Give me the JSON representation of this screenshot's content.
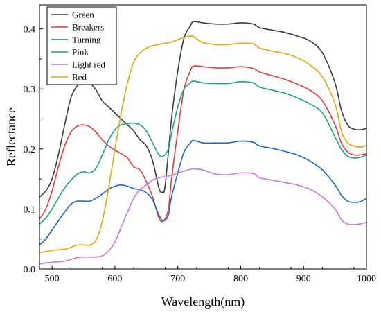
{
  "chart_data": {
    "type": "line",
    "xlabel": "Wavelength(nm)",
    "ylabel": "Reflectance",
    "xlim": [
      480,
      1000
    ],
    "ylim": [
      0.0,
      0.44
    ],
    "xticks": [
      500,
      600,
      700,
      800,
      900,
      1000
    ],
    "yticks": [
      0.0,
      0.1,
      0.2,
      0.3,
      0.4
    ],
    "grid": false,
    "legend_position": "top-left",
    "series": [
      {
        "name": "Green",
        "color": "#3a3a3a",
        "points": [
          [
            480,
            0.12
          ],
          [
            490,
            0.13
          ],
          [
            500,
            0.15
          ],
          [
            510,
            0.19
          ],
          [
            520,
            0.24
          ],
          [
            530,
            0.285
          ],
          [
            540,
            0.305
          ],
          [
            550,
            0.313
          ],
          [
            560,
            0.31
          ],
          [
            570,
            0.298
          ],
          [
            580,
            0.28
          ],
          [
            590,
            0.27
          ],
          [
            600,
            0.26
          ],
          [
            610,
            0.25
          ],
          [
            620,
            0.24
          ],
          [
            630,
            0.23
          ],
          [
            640,
            0.215
          ],
          [
            650,
            0.205
          ],
          [
            660,
            0.18
          ],
          [
            670,
            0.135
          ],
          [
            675,
            0.128
          ],
          [
            680,
            0.14
          ],
          [
            690,
            0.25
          ],
          [
            700,
            0.33
          ],
          [
            710,
            0.385
          ],
          [
            720,
            0.405
          ],
          [
            725,
            0.412
          ],
          [
            740,
            0.41
          ],
          [
            760,
            0.408
          ],
          [
            780,
            0.408
          ],
          [
            800,
            0.41
          ],
          [
            820,
            0.408
          ],
          [
            830,
            0.402
          ],
          [
            850,
            0.398
          ],
          [
            870,
            0.394
          ],
          [
            890,
            0.388
          ],
          [
            910,
            0.38
          ],
          [
            930,
            0.36
          ],
          [
            950,
            0.31
          ],
          [
            960,
            0.265
          ],
          [
            970,
            0.24
          ],
          [
            980,
            0.233
          ],
          [
            990,
            0.232
          ],
          [
            1000,
            0.234
          ]
        ]
      },
      {
        "name": "Breakers",
        "color": "#e8383b",
        "points": [
          [
            480,
            0.083
          ],
          [
            490,
            0.1
          ],
          [
            500,
            0.13
          ],
          [
            510,
            0.17
          ],
          [
            520,
            0.205
          ],
          [
            530,
            0.228
          ],
          [
            540,
            0.238
          ],
          [
            550,
            0.24
          ],
          [
            560,
            0.237
          ],
          [
            570,
            0.228
          ],
          [
            580,
            0.215
          ],
          [
            590,
            0.205
          ],
          [
            600,
            0.198
          ],
          [
            610,
            0.192
          ],
          [
            620,
            0.185
          ],
          [
            630,
            0.17
          ],
          [
            640,
            0.165
          ],
          [
            650,
            0.145
          ],
          [
            660,
            0.12
          ],
          [
            670,
            0.085
          ],
          [
            677,
            0.08
          ],
          [
            685,
            0.1
          ],
          [
            690,
            0.15
          ],
          [
            700,
            0.23
          ],
          [
            710,
            0.3
          ],
          [
            720,
            0.33
          ],
          [
            725,
            0.338
          ],
          [
            740,
            0.337
          ],
          [
            760,
            0.335
          ],
          [
            780,
            0.335
          ],
          [
            800,
            0.337
          ],
          [
            820,
            0.334
          ],
          [
            830,
            0.328
          ],
          [
            850,
            0.322
          ],
          [
            870,
            0.316
          ],
          [
            890,
            0.308
          ],
          [
            910,
            0.298
          ],
          [
            930,
            0.28
          ],
          [
            950,
            0.24
          ],
          [
            960,
            0.21
          ],
          [
            970,
            0.195
          ],
          [
            980,
            0.19
          ],
          [
            990,
            0.19
          ],
          [
            1000,
            0.192
          ]
        ]
      },
      {
        "name": "Turning",
        "color": "#1a66c8",
        "points": [
          [
            480,
            0.04
          ],
          [
            490,
            0.05
          ],
          [
            500,
            0.065
          ],
          [
            510,
            0.08
          ],
          [
            520,
            0.095
          ],
          [
            530,
            0.108
          ],
          [
            540,
            0.113
          ],
          [
            550,
            0.113
          ],
          [
            560,
            0.113
          ],
          [
            570,
            0.118
          ],
          [
            580,
            0.125
          ],
          [
            590,
            0.133
          ],
          [
            600,
            0.138
          ],
          [
            610,
            0.14
          ],
          [
            620,
            0.138
          ],
          [
            630,
            0.134
          ],
          [
            640,
            0.132
          ],
          [
            650,
            0.127
          ],
          [
            660,
            0.115
          ],
          [
            670,
            0.09
          ],
          [
            677,
            0.08
          ],
          [
            685,
            0.09
          ],
          [
            690,
            0.12
          ],
          [
            700,
            0.16
          ],
          [
            710,
            0.195
          ],
          [
            720,
            0.21
          ],
          [
            725,
            0.214
          ],
          [
            740,
            0.21
          ],
          [
            760,
            0.21
          ],
          [
            780,
            0.21
          ],
          [
            800,
            0.213
          ],
          [
            820,
            0.211
          ],
          [
            830,
            0.205
          ],
          [
            850,
            0.201
          ],
          [
            870,
            0.196
          ],
          [
            890,
            0.19
          ],
          [
            910,
            0.18
          ],
          [
            930,
            0.165
          ],
          [
            950,
            0.14
          ],
          [
            960,
            0.123
          ],
          [
            970,
            0.113
          ],
          [
            980,
            0.111
          ],
          [
            990,
            0.112
          ],
          [
            1000,
            0.118
          ]
        ]
      },
      {
        "name": "Pink",
        "color": "#1aa478",
        "points": [
          [
            480,
            0.075
          ],
          [
            490,
            0.085
          ],
          [
            500,
            0.1
          ],
          [
            510,
            0.118
          ],
          [
            520,
            0.135
          ],
          [
            530,
            0.148
          ],
          [
            540,
            0.158
          ],
          [
            550,
            0.162
          ],
          [
            560,
            0.16
          ],
          [
            570,
            0.168
          ],
          [
            580,
            0.19
          ],
          [
            590,
            0.215
          ],
          [
            600,
            0.232
          ],
          [
            610,
            0.24
          ],
          [
            620,
            0.242
          ],
          [
            630,
            0.243
          ],
          [
            640,
            0.24
          ],
          [
            650,
            0.23
          ],
          [
            660,
            0.21
          ],
          [
            670,
            0.19
          ],
          [
            677,
            0.188
          ],
          [
            685,
            0.2
          ],
          [
            690,
            0.225
          ],
          [
            700,
            0.27
          ],
          [
            710,
            0.3
          ],
          [
            720,
            0.31
          ],
          [
            725,
            0.313
          ],
          [
            740,
            0.31
          ],
          [
            760,
            0.309
          ],
          [
            780,
            0.309
          ],
          [
            800,
            0.312
          ],
          [
            820,
            0.31
          ],
          [
            830,
            0.303
          ],
          [
            850,
            0.298
          ],
          [
            870,
            0.293
          ],
          [
            890,
            0.285
          ],
          [
            910,
            0.275
          ],
          [
            930,
            0.26
          ],
          [
            950,
            0.22
          ],
          [
            960,
            0.2
          ],
          [
            970,
            0.188
          ],
          [
            980,
            0.185
          ],
          [
            990,
            0.186
          ],
          [
            1000,
            0.19
          ]
        ]
      },
      {
        "name": "Light red",
        "color": "#c478db",
        "points": [
          [
            480,
            0.008
          ],
          [
            490,
            0.01
          ],
          [
            500,
            0.011
          ],
          [
            510,
            0.012
          ],
          [
            520,
            0.013
          ],
          [
            530,
            0.016
          ],
          [
            540,
            0.019
          ],
          [
            550,
            0.02
          ],
          [
            560,
            0.02
          ],
          [
            570,
            0.02
          ],
          [
            580,
            0.022
          ],
          [
            590,
            0.03
          ],
          [
            600,
            0.045
          ],
          [
            610,
            0.07
          ],
          [
            620,
            0.095
          ],
          [
            630,
            0.118
          ],
          [
            640,
            0.132
          ],
          [
            650,
            0.14
          ],
          [
            660,
            0.148
          ],
          [
            670,
            0.152
          ],
          [
            680,
            0.154
          ],
          [
            690,
            0.156
          ],
          [
            700,
            0.16
          ],
          [
            710,
            0.163
          ],
          [
            720,
            0.166
          ],
          [
            725,
            0.167
          ],
          [
            740,
            0.165
          ],
          [
            760,
            0.158
          ],
          [
            780,
            0.157
          ],
          [
            800,
            0.16
          ],
          [
            820,
            0.159
          ],
          [
            830,
            0.152
          ],
          [
            850,
            0.148
          ],
          [
            870,
            0.144
          ],
          [
            890,
            0.14
          ],
          [
            910,
            0.133
          ],
          [
            930,
            0.12
          ],
          [
            950,
            0.1
          ],
          [
            960,
            0.082
          ],
          [
            970,
            0.075
          ],
          [
            980,
            0.074
          ],
          [
            990,
            0.075
          ],
          [
            1000,
            0.078
          ]
        ]
      },
      {
        "name": "Red",
        "color": "#e3a60f",
        "points": [
          [
            480,
            0.027
          ],
          [
            490,
            0.029
          ],
          [
            500,
            0.031
          ],
          [
            510,
            0.032
          ],
          [
            520,
            0.033
          ],
          [
            530,
            0.036
          ],
          [
            540,
            0.04
          ],
          [
            550,
            0.04
          ],
          [
            560,
            0.04
          ],
          [
            570,
            0.048
          ],
          [
            580,
            0.08
          ],
          [
            590,
            0.135
          ],
          [
            600,
            0.2
          ],
          [
            610,
            0.26
          ],
          [
            620,
            0.31
          ],
          [
            630,
            0.345
          ],
          [
            640,
            0.36
          ],
          [
            650,
            0.368
          ],
          [
            660,
            0.372
          ],
          [
            670,
            0.374
          ],
          [
            680,
            0.376
          ],
          [
            690,
            0.378
          ],
          [
            700,
            0.382
          ],
          [
            710,
            0.386
          ],
          [
            720,
            0.388
          ],
          [
            725,
            0.387
          ],
          [
            740,
            0.377
          ],
          [
            760,
            0.374
          ],
          [
            780,
            0.374
          ],
          [
            800,
            0.376
          ],
          [
            820,
            0.375
          ],
          [
            830,
            0.368
          ],
          [
            850,
            0.363
          ],
          [
            870,
            0.359
          ],
          [
            890,
            0.352
          ],
          [
            910,
            0.34
          ],
          [
            930,
            0.32
          ],
          [
            950,
            0.275
          ],
          [
            960,
            0.23
          ],
          [
            970,
            0.21
          ],
          [
            980,
            0.205
          ],
          [
            990,
            0.203
          ],
          [
            1000,
            0.206
          ]
        ]
      }
    ]
  }
}
